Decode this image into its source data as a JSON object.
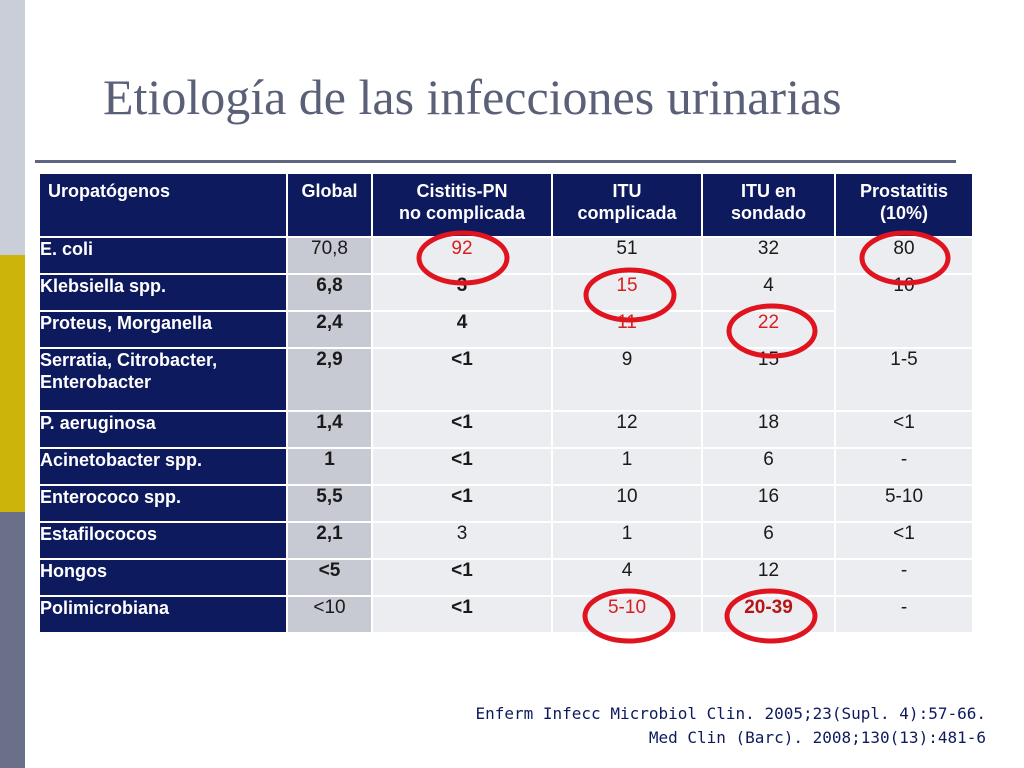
{
  "title": "Etiología de las infecciones urinarias",
  "table": {
    "headers": [
      [
        "Uropatógenos"
      ],
      [
        "Global"
      ],
      [
        "Cistitis-PN",
        "no complicada"
      ],
      [
        "ITU",
        "complicada"
      ],
      [
        "ITU en",
        "sondado"
      ],
      [
        "Prostatitis",
        "(10%)"
      ]
    ],
    "rows": [
      {
        "name": [
          "E. coli"
        ],
        "global": "70,8",
        "cistitis": "92",
        "itu_complicada": "51",
        "itu_sondado": "32",
        "prostatitis": "80"
      },
      {
        "name": [
          "Klebsiella spp."
        ],
        "global": "6,8",
        "cistitis": "3",
        "itu_complicada": "15",
        "itu_sondado": "4",
        "prostatitis": "10"
      },
      {
        "name": [
          "Proteus, Morganella"
        ],
        "global": "2,4",
        "cistitis": "4",
        "itu_complicada": "11",
        "itu_sondado": "22",
        "prostatitis": ""
      },
      {
        "name": [
          "Serratia,  Citrobacter,",
          "Enterobacter"
        ],
        "global": "2,9",
        "cistitis": "<1",
        "itu_complicada": "9",
        "itu_sondado": "15",
        "prostatitis": "1-5"
      },
      {
        "name": [
          "P. aeruginosa"
        ],
        "global": "1,4",
        "cistitis": "<1",
        "itu_complicada": "12",
        "itu_sondado": "18",
        "prostatitis": "<1"
      },
      {
        "name": [
          "Acinetobacter spp."
        ],
        "global": "1",
        "cistitis": "<1",
        "itu_complicada": "1",
        "itu_sondado": "6",
        "prostatitis": "-"
      },
      {
        "name": [
          "Enterococo  spp."
        ],
        "global": "5,5",
        "cistitis": "<1",
        "itu_complicada": "10",
        "itu_sondado": "16",
        "prostatitis": "5-10"
      },
      {
        "name": [
          "Estafilococos"
        ],
        "global": "2,1",
        "cistitis": "3",
        "itu_complicada": "1",
        "itu_sondado": "6",
        "prostatitis": "<1"
      },
      {
        "name": [
          "Hongos"
        ],
        "global": "<5",
        "cistitis": "<1",
        "itu_complicada": "4",
        "itu_sondado": "12",
        "prostatitis": "-"
      },
      {
        "name": [
          "Polimicrobiana"
        ],
        "global": "<10",
        "cistitis": "<1",
        "itu_complicada": "5-10",
        "itu_sondado": "20-39",
        "prostatitis": "-"
      }
    ]
  },
  "references": [
    "Enferm Infecc Microbiol Clin. 2005;23(Supl. 4):57-66.",
    "Med Clin (Barc). 2008;130(13):481-6"
  ],
  "colors": {
    "header_bg": "#0e1a5e",
    "global_bg": "#c7c9d3",
    "cell_bg": "#ebedf1",
    "highlight_red": "#e0141e",
    "accent_gold": "#cdb40b"
  }
}
